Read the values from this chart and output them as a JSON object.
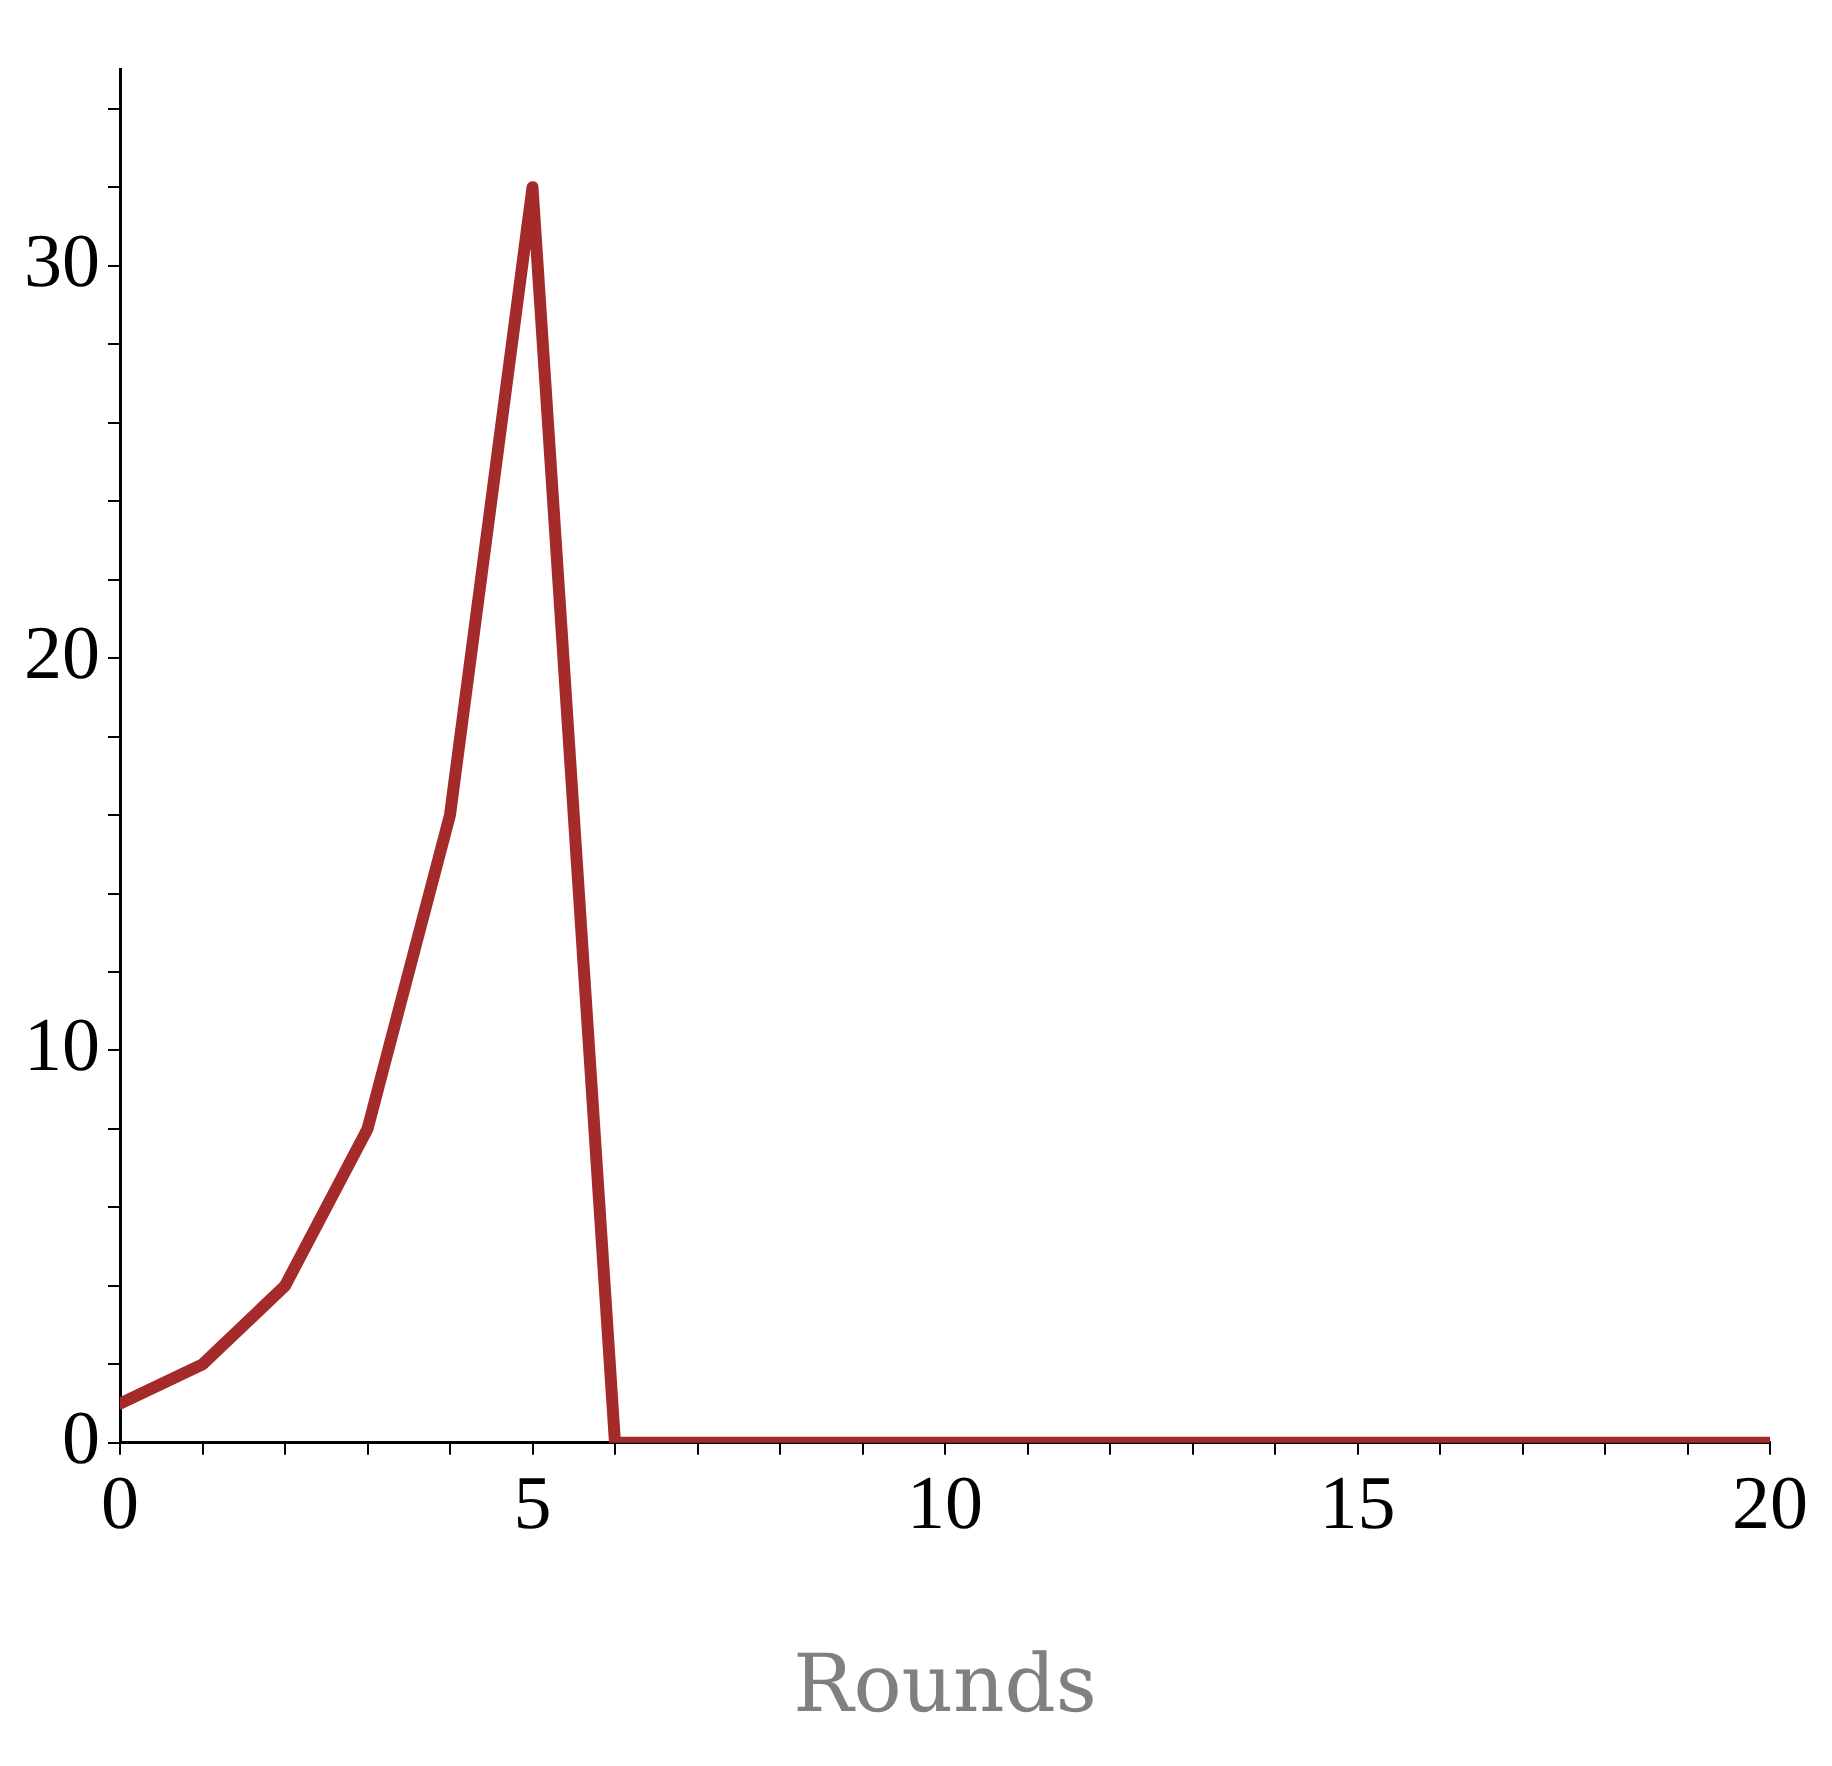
{
  "chart_data": {
    "type": "line",
    "xlabel": "Rounds",
    "x": [
      0,
      1,
      2,
      3,
      4,
      5,
      6,
      7,
      8,
      9,
      10,
      11,
      12,
      13,
      14,
      15,
      16,
      17,
      18,
      19,
      20
    ],
    "series": [
      {
        "color": "#a52a2a",
        "values": [
          1,
          2,
          4,
          8,
          16,
          32,
          0,
          0,
          0,
          0,
          0,
          0,
          0,
          0,
          0,
          0,
          0,
          0,
          0,
          0,
          0
        ]
      }
    ],
    "xlim": [
      0,
      20
    ],
    "xticks": [
      0,
      {
        "value": 1,
        "label": null
      },
      {
        "value": 2,
        "label": null
      },
      {
        "value": 3,
        "label": null
      },
      {
        "value": 4,
        "label": null
      },
      5,
      {
        "value": 6,
        "label": null
      },
      {
        "value": 7,
        "label": null
      },
      {
        "value": 8,
        "label": null
      },
      {
        "value": 9,
        "label": null
      },
      10,
      {
        "value": 11,
        "label": null
      },
      {
        "value": 12,
        "label": null
      },
      {
        "value": 13,
        "label": null
      },
      {
        "value": 14,
        "label": null
      },
      15,
      {
        "value": 16,
        "label": null
      },
      {
        "value": 17,
        "label": null
      },
      {
        "value": 18,
        "label": null
      },
      {
        "value": 19,
        "label": null
      },
      20
    ],
    "ylim": [
      0,
      35
    ],
    "yticks": [
      0,
      {
        "value": 2,
        "label": null
      },
      {
        "value": 4,
        "label": null
      },
      {
        "value": 6,
        "label": null
      },
      {
        "value": 8,
        "label": null
      },
      10,
      {
        "value": 12,
        "label": null
      },
      {
        "value": 14,
        "label": null
      },
      {
        "value": 16,
        "label": null
      },
      {
        "value": 18,
        "label": null
      },
      20,
      {
        "value": 22,
        "label": null
      },
      {
        "value": 24,
        "label": null
      },
      {
        "value": 26,
        "label": null
      },
      {
        "value": 28,
        "label": null
      },
      30,
      {
        "value": 32,
        "label": null
      },
      {
        "value": 34,
        "label": null
      }
    ],
    "grid": false,
    "legend": false,
    "marker": "none",
    "line_style": "solid"
  }
}
